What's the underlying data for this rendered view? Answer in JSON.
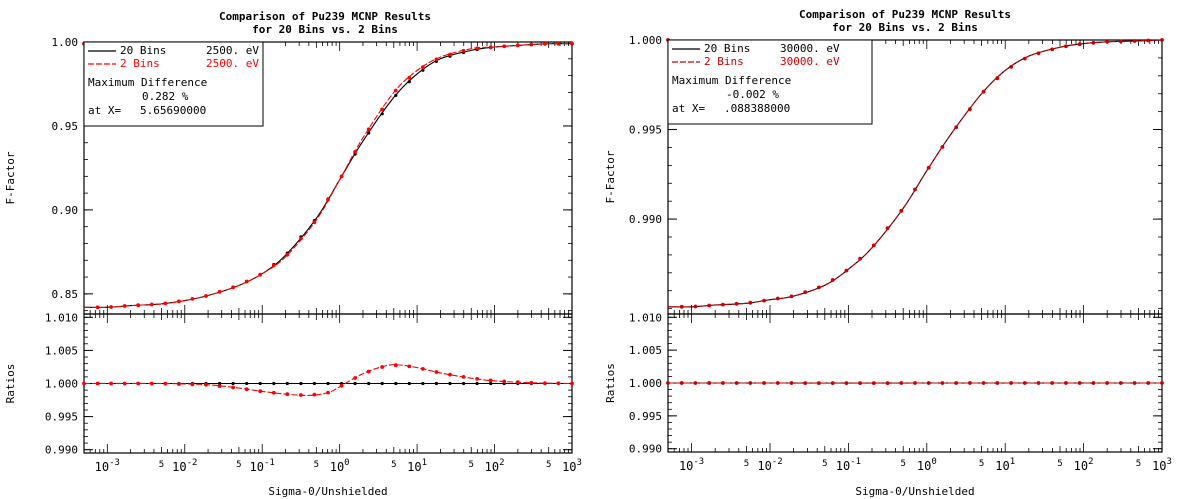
{
  "chart_data": [
    {
      "type": "line",
      "title": "Comparison of Pu239 MCNP Results",
      "subtitle": "for 20 Bins vs. 2 Bins",
      "xlabel": "Sigma-0/Unshielded",
      "xscale": "log",
      "xlim": [
        0.0005,
        1000
      ],
      "x_ticks": [
        "10^-3",
        "5",
        "10^-2",
        "5",
        "10^-1",
        "5",
        "10^0",
        "5",
        "10^1",
        "5",
        "10^2",
        "5",
        "10^3"
      ],
      "upper": {
        "ylabel": "F-Factor",
        "ylim": [
          0.838,
          1.0
        ],
        "y_ticks": [
          "0.85",
          "0.90",
          "0.95",
          "1.00"
        ],
        "series": [
          {
            "name": "20 Bins",
            "energy": "2500. eV",
            "color": "#000000",
            "x": [
              0.0005,
              0.001,
              0.002,
              0.005,
              0.01,
              0.02,
              0.05,
              0.1,
              0.2,
              0.5,
              1,
              2,
              5,
              10,
              20,
              50,
              100,
              200,
              500,
              1000
            ],
            "values": [
              0.842,
              0.842,
              0.843,
              0.844,
              0.846,
              0.849,
              0.855,
              0.862,
              0.873,
              0.895,
              0.918,
              0.941,
              0.967,
              0.981,
              0.99,
              0.995,
              0.997,
              0.998,
              0.999,
              0.999
            ]
          },
          {
            "name": "2 Bins",
            "energy": "2500. eV",
            "color": "#ff0000",
            "x": [
              0.0005,
              0.001,
              0.002,
              0.005,
              0.01,
              0.02,
              0.05,
              0.1,
              0.2,
              0.5,
              1,
              2,
              5,
              10,
              20,
              50,
              100,
              200,
              500,
              1000
            ],
            "values": [
              0.842,
              0.842,
              0.843,
              0.844,
              0.846,
              0.849,
              0.855,
              0.862,
              0.872,
              0.894,
              0.918,
              0.943,
              0.97,
              0.983,
              0.991,
              0.996,
              0.997,
              0.998,
              0.999,
              0.999
            ]
          }
        ],
        "legend": {
          "entries": [
            {
              "label": "20 Bins",
              "energy": "2500. eV",
              "color": "#000000"
            },
            {
              "label": "2 Bins",
              "energy": "2500. eV",
              "color": "#ff0000"
            }
          ],
          "max_diff_label": "Maximum Difference",
          "max_diff_value": "0.282 %",
          "at_x_label": "at X=",
          "at_x_value": "5.65690000"
        }
      },
      "lower": {
        "ylabel": "Ratios",
        "ylim": [
          0.9895,
          1.0105
        ],
        "y_ticks": [
          "0.990",
          "0.995",
          "1.000",
          "1.005",
          "1.010"
        ],
        "series": [
          {
            "name": "20 Bins",
            "color": "#000000",
            "x": [
              0.0005,
              1000
            ],
            "values": [
              1.0,
              1.0
            ]
          },
          {
            "name": "2 Bins",
            "color": "#ff0000",
            "x": [
              0.0005,
              0.005,
              0.02,
              0.05,
              0.1,
              0.2,
              0.4,
              0.7,
              1,
              2,
              4,
              6,
              10,
              20,
              50,
              100,
              300,
              1000
            ],
            "values": [
              1.0,
              1.0,
              0.9998,
              0.9993,
              0.9988,
              0.9984,
              0.9982,
              0.9986,
              0.9995,
              1.0015,
              1.0027,
              1.0028,
              1.0024,
              1.0016,
              1.0008,
              1.0004,
              1.0001,
              1.0
            ]
          }
        ]
      }
    },
    {
      "type": "line",
      "title": "Comparison of Pu239 MCNP Results",
      "subtitle": "for 20 Bins vs. 2 Bins",
      "xlabel": "Sigma-0/Unshielded",
      "xscale": "log",
      "xlim": [
        0.0005,
        1000
      ],
      "x_ticks": [
        "10^-3",
        "5",
        "10^-2",
        "5",
        "10^-1",
        "5",
        "10^0",
        "5",
        "10^1",
        "5",
        "10^2",
        "5",
        "10^3"
      ],
      "upper": {
        "ylabel": "F-Factor",
        "ylim": [
          0.9847,
          1.0
        ],
        "y_ticks": [
          "0.990",
          "0.995",
          "1.000"
        ],
        "series": [
          {
            "name": "20 Bins",
            "energy": "30000. eV",
            "color": "#000000",
            "x": [
              0.0005,
              0.001,
              0.002,
              0.005,
              0.01,
              0.02,
              0.05,
              0.1,
              0.2,
              0.5,
              1,
              2,
              5,
              10,
              20,
              50,
              100,
              200,
              500,
              1000
            ],
            "values": [
              0.9851,
              0.9851,
              0.9852,
              0.9853,
              0.9855,
              0.9857,
              0.9863,
              0.9872,
              0.9884,
              0.9906,
              0.9927,
              0.9947,
              0.997,
              0.9983,
              0.9991,
              0.9996,
              0.9998,
              0.9999,
              0.99995,
              1.0
            ]
          },
          {
            "name": "2 Bins",
            "energy": "30000. eV",
            "color": "#cc0000",
            "x": [
              0.0005,
              0.001,
              0.002,
              0.005,
              0.01,
              0.02,
              0.05,
              0.1,
              0.2,
              0.5,
              1,
              2,
              5,
              10,
              20,
              50,
              100,
              200,
              500,
              1000
            ],
            "values": [
              0.9851,
              0.9851,
              0.9852,
              0.9853,
              0.9855,
              0.9857,
              0.9863,
              0.9872,
              0.9884,
              0.9906,
              0.9927,
              0.9947,
              0.997,
              0.9983,
              0.9991,
              0.9996,
              0.9998,
              0.9999,
              0.99995,
              1.0
            ]
          }
        ],
        "legend": {
          "entries": [
            {
              "label": "20 Bins",
              "energy": "30000. eV",
              "color": "#000000"
            },
            {
              "label": "2 Bins",
              "energy": "30000. eV",
              "color": "#cc0000"
            }
          ],
          "max_diff_label": "Maximum Difference",
          "max_diff_value": "-0.002 %",
          "at_x_label": "at X=",
          "at_x_value": ".088388000"
        }
      },
      "lower": {
        "ylabel": "Ratios",
        "ylim": [
          0.9895,
          1.0105
        ],
        "y_ticks": [
          "0.990",
          "0.995",
          "1.000",
          "1.005",
          "1.010"
        ],
        "series": [
          {
            "name": "20 Bins",
            "color": "#000000",
            "x": [
              0.0005,
              1000
            ],
            "values": [
              1.0,
              1.0
            ]
          },
          {
            "name": "2 Bins",
            "color": "#cc0000",
            "x": [
              0.0005,
              0.01,
              0.1,
              1,
              10,
              100,
              1000
            ],
            "values": [
              1.0,
              1.0,
              0.99998,
              1.0,
              1.0,
              1.0,
              1.0
            ]
          }
        ]
      }
    }
  ]
}
